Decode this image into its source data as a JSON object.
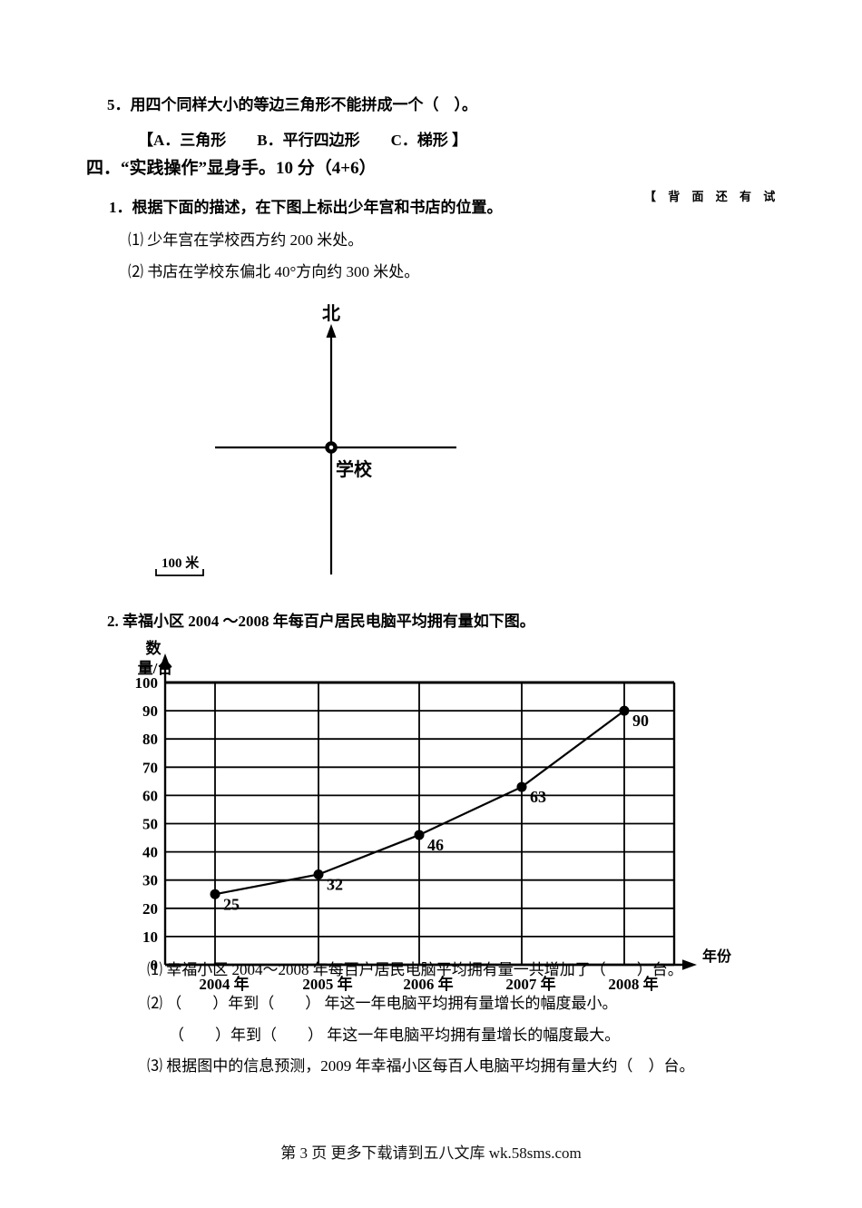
{
  "page": {
    "question5": {
      "text": "5．用四个同样大小的等边三角形不能拼成一个（　）。",
      "options": "【A．三角形　　B．平行四边形　　C．梯形 】"
    },
    "section4": {
      "heading": "四．“实践操作”显身手。10 分（4+6）",
      "side_note": "【 背 面 还 有 试"
    },
    "q1": {
      "text": "1．根据下面的描述，在下图上标出少年宫和书店的位置。",
      "sub1": "⑴ 少年宫在学校西方约 200 米处。",
      "sub2": "⑵ 书店在学校东偏北 40°方向约 300 米处。"
    },
    "compass": {
      "north": "北",
      "school": "学校",
      "scale": "100 米"
    },
    "q2": {
      "text": "2. 幸福小区 2004 ～2008 年每百户居民电脑平均拥有量如下图。",
      "sub1": "⑴ 幸福小区 2004～2008 年每百户居民电脑平均拥有量一共增加了（　　）台。",
      "sub2": "⑵ （　　）年到（　　） 年这一年电脑平均拥有量增长的幅度最小。",
      "sub2b": "（　　）年到（　　） 年这一年电脑平均拥有量增长的幅度最大。",
      "sub3": "⑶ 根据图中的信息预测，2009 年幸福小区每百人电脑平均拥有量大约（　）台。"
    },
    "footer": "第 3 页 更多下载请到五八文库 wk.58sms.com"
  },
  "chart_data": {
    "type": "line",
    "categories": [
      "2004 年",
      "2005 年",
      "2006 年",
      "2007 年",
      "2008 年"
    ],
    "values": [
      25,
      32,
      46,
      63,
      90
    ],
    "point_labels": [
      "25",
      "32",
      "46",
      "63",
      "90"
    ],
    "xlabel": "年份",
    "ylabel": "数量/台",
    "ylabel_lines": [
      "数",
      "量/台"
    ],
    "yticks": [
      0,
      10,
      20,
      30,
      40,
      50,
      60,
      70,
      80,
      90,
      100
    ],
    "ylim": [
      0,
      100
    ],
    "grid": true,
    "legend": false,
    "marker": "filled-circle"
  }
}
